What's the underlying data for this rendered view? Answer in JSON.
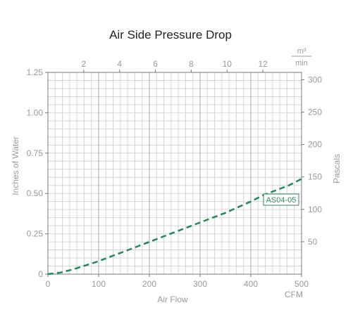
{
  "chart_data": {
    "type": "line",
    "title": "Air Side Pressure Drop",
    "xlabel": "Air Flow",
    "xunit": "CFM",
    "ylabel_left": "Inches of Water",
    "ylabel_right": "Pascals",
    "top_axis_unit_numerator": "m³",
    "top_axis_unit_denominator": "min",
    "xlim": [
      0,
      500
    ],
    "ylim": [
      0,
      1.25
    ],
    "x_ticks": [
      "0",
      "100",
      "200",
      "300",
      "400",
      "500"
    ],
    "y_ticks": [
      "0",
      "0.25",
      "0.50",
      "0.75",
      "1.00",
      "1.25"
    ],
    "right_ticks": [
      "50",
      "100",
      "150",
      "200",
      "250",
      "300"
    ],
    "top_ticks": [
      "2",
      "4",
      "6",
      "8",
      "10",
      "12"
    ],
    "grid": true,
    "series": [
      {
        "name": "AS04-05",
        "color": "#1f8a55",
        "style": "dashed",
        "x": [
          0,
          25,
          50,
          75,
          100,
          125,
          150,
          175,
          200,
          225,
          250,
          275,
          300,
          325,
          350,
          375,
          400,
          425,
          450,
          475,
          500
        ],
        "y": [
          0.0,
          0.01,
          0.03,
          0.055,
          0.08,
          0.11,
          0.14,
          0.17,
          0.2,
          0.23,
          0.26,
          0.29,
          0.32,
          0.35,
          0.38,
          0.415,
          0.45,
          0.49,
          0.52,
          0.55,
          0.59
        ]
      }
    ],
    "annotation": "AS04-05"
  }
}
